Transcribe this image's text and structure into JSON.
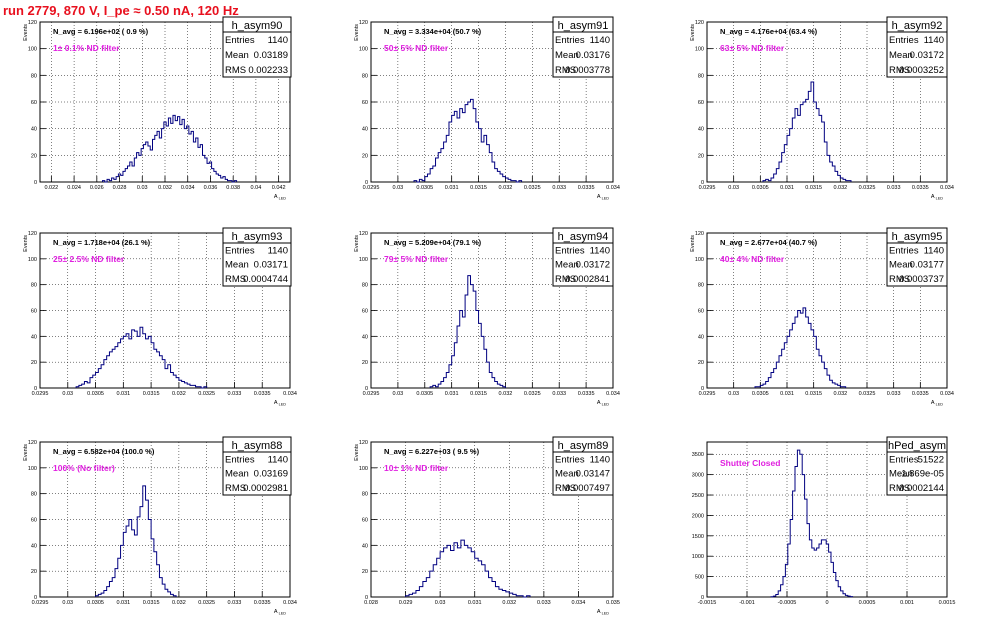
{
  "title": "run 2779,   870 V, I_pe ≈ 0.50 nA, 120 Hz",
  "colors": {
    "title": "#e8101e",
    "annotation": "#e020e0",
    "histogram": "#000080",
    "frame": "#000000",
    "grid": "#000000"
  },
  "chart_data": [
    {
      "type": "bar",
      "name": "h_asym90",
      "stats": {
        "entries_label": "Entries",
        "entries": "1140",
        "mean_label": "Mean",
        "mean": "0.03189",
        "rms_label": "RMS",
        "rms": "0.002233"
      },
      "navg": "N_avg = 6.196e+02 ( 0.9 %)",
      "filter": "1± 0.1% ND filter",
      "ylabel": "Events",
      "xlabel": "A_LED",
      "xlim": [
        0.021,
        0.043
      ],
      "ylim": [
        0,
        120
      ],
      "xticks": [
        0.022,
        0.024,
        0.026,
        0.028,
        0.03,
        0.032,
        0.034,
        0.036,
        0.038,
        0.04,
        0.042
      ],
      "xtick_labels": [
        "0.022",
        "0.024",
        "0.026",
        "0.028",
        "0.03",
        "0.032",
        "0.034",
        "0.036",
        "0.038",
        "0.04",
        "0.042"
      ],
      "yticks": [
        0,
        20,
        40,
        60,
        80,
        100,
        120
      ],
      "hist": {
        "start": 0.0265,
        "width": 0.0002,
        "counts": [
          1,
          0,
          2,
          1,
          3,
          2,
          4,
          6,
          5,
          8,
          10,
          12,
          15,
          12,
          18,
          22,
          20,
          25,
          28,
          30,
          27,
          24,
          32,
          35,
          38,
          33,
          40,
          45,
          42,
          48,
          44,
          50,
          46,
          49,
          43,
          47,
          40,
          42,
          36,
          38,
          30,
          33,
          26,
          28,
          20,
          18,
          14,
          15,
          10,
          8,
          6,
          5,
          3,
          4,
          2,
          1,
          1,
          0,
          1
        ]
      }
    },
    {
      "type": "bar",
      "name": "h_asym91",
      "stats": {
        "entries_label": "Entries",
        "entries": "1140",
        "mean_label": "Mean",
        "mean": "0.03176",
        "rms_label": "RMS",
        "rms": "0.0003778"
      },
      "navg": "N_avg = 3.334e+04 (50.7 %)",
      "filter": "50± 5% ND filter",
      "ylabel": "Events",
      "xlabel": "A_LED",
      "xlim": [
        0.0295,
        0.034
      ],
      "ylim": [
        0,
        120
      ],
      "xticks": [
        0.0295,
        0.03,
        0.0305,
        0.031,
        0.0315,
        0.032,
        0.0325,
        0.033,
        0.0335,
        0.034
      ],
      "xtick_labels": [
        "0.0295",
        "0.03",
        "0.0305",
        "0.031",
        "0.0315",
        "0.032",
        "0.0325",
        "0.033",
        "0.0335",
        "0.034"
      ],
      "yticks": [
        0,
        20,
        40,
        60,
        80,
        100,
        120
      ],
      "hist": {
        "start": 0.0303,
        "width": 5e-05,
        "counts": [
          1,
          0,
          2,
          1,
          4,
          6,
          10,
          12,
          18,
          22,
          25,
          30,
          35,
          45,
          50,
          53,
          48,
          55,
          52,
          58,
          60,
          62,
          55,
          45,
          40,
          30,
          35,
          28,
          22,
          15,
          10,
          8,
          6,
          4,
          3,
          2,
          1,
          1,
          0,
          1
        ]
      }
    },
    {
      "type": "bar",
      "name": "h_asym92",
      "stats": {
        "entries_label": "Entries",
        "entries": "1140",
        "mean_label": "Mean",
        "mean": "0.03172",
        "rms_label": "RMS",
        "rms": "0.0003252"
      },
      "navg": "N_avg = 4.176e+04 (63.4 %)",
      "filter": "63± 5% ND filter",
      "ylabel": "Events",
      "xlabel": "A_LED",
      "xlim": [
        0.0295,
        0.034
      ],
      "ylim": [
        0,
        120
      ],
      "xticks": [
        0.0295,
        0.03,
        0.0305,
        0.031,
        0.0315,
        0.032,
        0.0325,
        0.033,
        0.0335,
        0.034
      ],
      "xtick_labels": [
        "0.0295",
        "0.03",
        "0.0305",
        "0.031",
        "0.0315",
        "0.032",
        "0.0325",
        "0.033",
        "0.0335",
        "0.034"
      ],
      "yticks": [
        0,
        20,
        40,
        60,
        80,
        100,
        120
      ],
      "hist": {
        "start": 0.03055,
        "width": 5e-05,
        "counts": [
          1,
          2,
          1,
          3,
          6,
          10,
          15,
          22,
          28,
          35,
          40,
          48,
          55,
          50,
          58,
          60,
          62,
          68,
          75,
          60,
          55,
          50,
          45,
          30,
          20,
          15,
          12,
          8,
          5,
          3,
          2,
          1,
          1
        ]
      }
    },
    {
      "type": "bar",
      "name": "h_asym93",
      "stats": {
        "entries_label": "Entries",
        "entries": "1140",
        "mean_label": "Mean",
        "mean": "0.03171",
        "rms_label": "RMS",
        "rms": "0.0004744"
      },
      "navg": "N_avg = 1.718e+04 (26.1 %)",
      "filter": "25± 2.5% ND filter",
      "ylabel": "Events",
      "xlabel": "A_LED",
      "xlim": [
        0.0295,
        0.034
      ],
      "ylim": [
        0,
        120
      ],
      "xticks": [
        0.0295,
        0.03,
        0.0305,
        0.031,
        0.0315,
        0.032,
        0.0325,
        0.033,
        0.0335,
        0.034
      ],
      "xtick_labels": [
        "0.0295",
        "0.03",
        "0.0305",
        "0.031",
        "0.0315",
        "0.032",
        "0.0325",
        "0.033",
        "0.0335",
        "0.034"
      ],
      "yticks": [
        0,
        20,
        40,
        60,
        80,
        100,
        120
      ],
      "hist": {
        "start": 0.03015,
        "width": 5e-05,
        "counts": [
          1,
          2,
          3,
          5,
          4,
          8,
          10,
          12,
          15,
          18,
          22,
          25,
          28,
          30,
          32,
          35,
          38,
          40,
          42,
          38,
          45,
          44,
          40,
          47,
          42,
          38,
          40,
          35,
          30,
          28,
          25,
          22,
          15,
          18,
          12,
          10,
          8,
          6,
          5,
          4,
          3,
          2,
          2,
          1,
          1,
          0,
          1
        ]
      }
    },
    {
      "type": "bar",
      "name": "h_asym94",
      "stats": {
        "entries_label": "Entries",
        "entries": "1140",
        "mean_label": "Mean",
        "mean": "0.03172",
        "rms_label": "RMS",
        "rms": "0.0002841"
      },
      "navg": "N_avg = 5.209e+04 (79.1 %)",
      "filter": "79± 5% ND filter",
      "ylabel": "Events",
      "xlabel": "A_LED",
      "xlim": [
        0.0295,
        0.034
      ],
      "ylim": [
        0,
        120
      ],
      "xticks": [
        0.0295,
        0.03,
        0.0305,
        0.031,
        0.0315,
        0.032,
        0.0325,
        0.033,
        0.0335,
        0.034
      ],
      "xtick_labels": [
        "0.0295",
        "0.03",
        "0.0305",
        "0.031",
        "0.0315",
        "0.032",
        "0.0325",
        "0.033",
        "0.0335",
        "0.034"
      ],
      "yticks": [
        0,
        20,
        40,
        60,
        80,
        100,
        120
      ],
      "hist": {
        "start": 0.0306,
        "width": 5e-05,
        "counts": [
          1,
          2,
          1,
          3,
          5,
          8,
          12,
          18,
          25,
          35,
          48,
          60,
          55,
          72,
          87,
          80,
          75,
          60,
          50,
          40,
          30,
          20,
          12,
          8,
          5,
          3,
          2,
          1
        ]
      }
    },
    {
      "type": "bar",
      "name": "h_asym95",
      "stats": {
        "entries_label": "Entries",
        "entries": "1140",
        "mean_label": "Mean",
        "mean": "0.03177",
        "rms_label": "RMS",
        "rms": "0.0003737"
      },
      "navg": "N_avg = 2.677e+04 (40.7 %)",
      "filter": "40± 4% ND filter",
      "ylabel": "Events",
      "xlabel": "A_LED",
      "xlim": [
        0.0295,
        0.034
      ],
      "ylim": [
        0,
        120
      ],
      "xticks": [
        0.0295,
        0.03,
        0.0305,
        0.031,
        0.0315,
        0.032,
        0.0325,
        0.033,
        0.0335,
        0.034
      ],
      "xtick_labels": [
        "0.0295",
        "0.03",
        "0.0305",
        "0.031",
        "0.0315",
        "0.032",
        "0.0325",
        "0.033",
        "0.0335",
        "0.034"
      ],
      "yticks": [
        0,
        20,
        40,
        60,
        80,
        100,
        120
      ],
      "hist": {
        "start": 0.0304,
        "width": 5e-05,
        "counts": [
          1,
          1,
          2,
          3,
          5,
          8,
          12,
          15,
          20,
          25,
          30,
          35,
          40,
          45,
          50,
          55,
          60,
          58,
          62,
          55,
          50,
          45,
          40,
          30,
          25,
          20,
          15,
          10,
          6,
          4,
          3,
          2,
          1,
          1
        ]
      }
    },
    {
      "type": "bar",
      "name": "h_asym88",
      "stats": {
        "entries_label": "Entries",
        "entries": "1140",
        "mean_label": "Mean",
        "mean": "0.03169",
        "rms_label": "RMS",
        "rms": "0.0002981"
      },
      "navg": "N_avg = 6.582e+04 (100.0 %)",
      "filter": "100% (No filter)",
      "ylabel": "Events",
      "xlabel": "A_LED",
      "xlim": [
        0.0295,
        0.034
      ],
      "ylim": [
        0,
        120
      ],
      "xticks": [
        0.0295,
        0.03,
        0.0305,
        0.031,
        0.0315,
        0.032,
        0.0325,
        0.033,
        0.0335,
        0.034
      ],
      "xtick_labels": [
        "0.0295",
        "0.03",
        "0.0305",
        "0.031",
        "0.0315",
        "0.032",
        "0.0325",
        "0.033",
        "0.0335",
        "0.034"
      ],
      "yticks": [
        0,
        20,
        40,
        60,
        80,
        100,
        120
      ],
      "hist": {
        "start": 0.0305,
        "width": 5e-05,
        "counts": [
          1,
          2,
          3,
          5,
          8,
          12,
          15,
          22,
          30,
          40,
          50,
          55,
          60,
          52,
          48,
          62,
          70,
          86,
          75,
          60,
          45,
          35,
          25,
          15,
          10,
          6,
          4,
          2,
          1
        ]
      }
    },
    {
      "type": "bar",
      "name": "h_asym89",
      "stats": {
        "entries_label": "Entries",
        "entries": "1140",
        "mean_label": "Mean",
        "mean": "0.03147",
        "rms_label": "RMS",
        "rms": "0.0007497"
      },
      "navg": "N_avg = 6.227e+03 ( 9.5 %)",
      "filter": "10± 1% ND filter",
      "ylabel": "Events",
      "xlabel": "A_LED",
      "xlim": [
        0.028,
        0.035
      ],
      "ylim": [
        0,
        120
      ],
      "xticks": [
        0.028,
        0.029,
        0.03,
        0.031,
        0.032,
        0.033,
        0.034,
        0.035
      ],
      "xtick_labels": [
        "0.028",
        "0.029",
        "0.03",
        "0.031",
        "0.032",
        "0.033",
        "0.034",
        "0.035"
      ],
      "yticks": [
        0,
        20,
        40,
        60,
        80,
        100,
        120
      ],
      "hist": {
        "start": 0.029,
        "width": 0.0001,
        "counts": [
          1,
          2,
          3,
          5,
          8,
          12,
          15,
          20,
          25,
          30,
          35,
          38,
          40,
          36,
          42,
          38,
          44,
          40,
          38,
          35,
          30,
          28,
          25,
          20,
          15,
          12,
          8,
          6,
          5,
          4,
          3,
          2,
          1,
          1,
          0,
          1
        ]
      }
    },
    {
      "type": "bar",
      "name": "hPed_asym",
      "stats": {
        "entries_label": "Entries",
        "entries": "51522",
        "mean_label": "Mean",
        "mean": "-1.869e-05",
        "rms_label": "RMS",
        "rms": "0.0002144"
      },
      "navg": "",
      "filter": "Shutter Closed",
      "ylabel": "",
      "xlabel": "",
      "xlim": [
        -0.0015,
        0.0015
      ],
      "ylim": [
        0,
        3800
      ],
      "xticks": [
        -0.0015,
        -0.001,
        -0.0005,
        0,
        0.0005,
        0.001,
        0.0015
      ],
      "xtick_labels": [
        "-0.0015",
        "-0.001",
        "-0.0005",
        "0",
        "0.0005",
        "0.001",
        "0.0015"
      ],
      "yticks": [
        0,
        500,
        1000,
        1500,
        2000,
        2500,
        3000,
        3500
      ],
      "hist": {
        "start": -0.0007,
        "width": 3e-05,
        "counts": [
          5,
          20,
          60,
          150,
          300,
          500,
          800,
          1300,
          1900,
          2600,
          3200,
          3600,
          3500,
          3000,
          2400,
          1800,
          1400,
          1200,
          1150,
          1200,
          1300,
          1400,
          1400,
          1300,
          1100,
          850,
          600,
          400,
          250,
          150,
          80,
          40,
          20,
          10
        ]
      }
    }
  ]
}
